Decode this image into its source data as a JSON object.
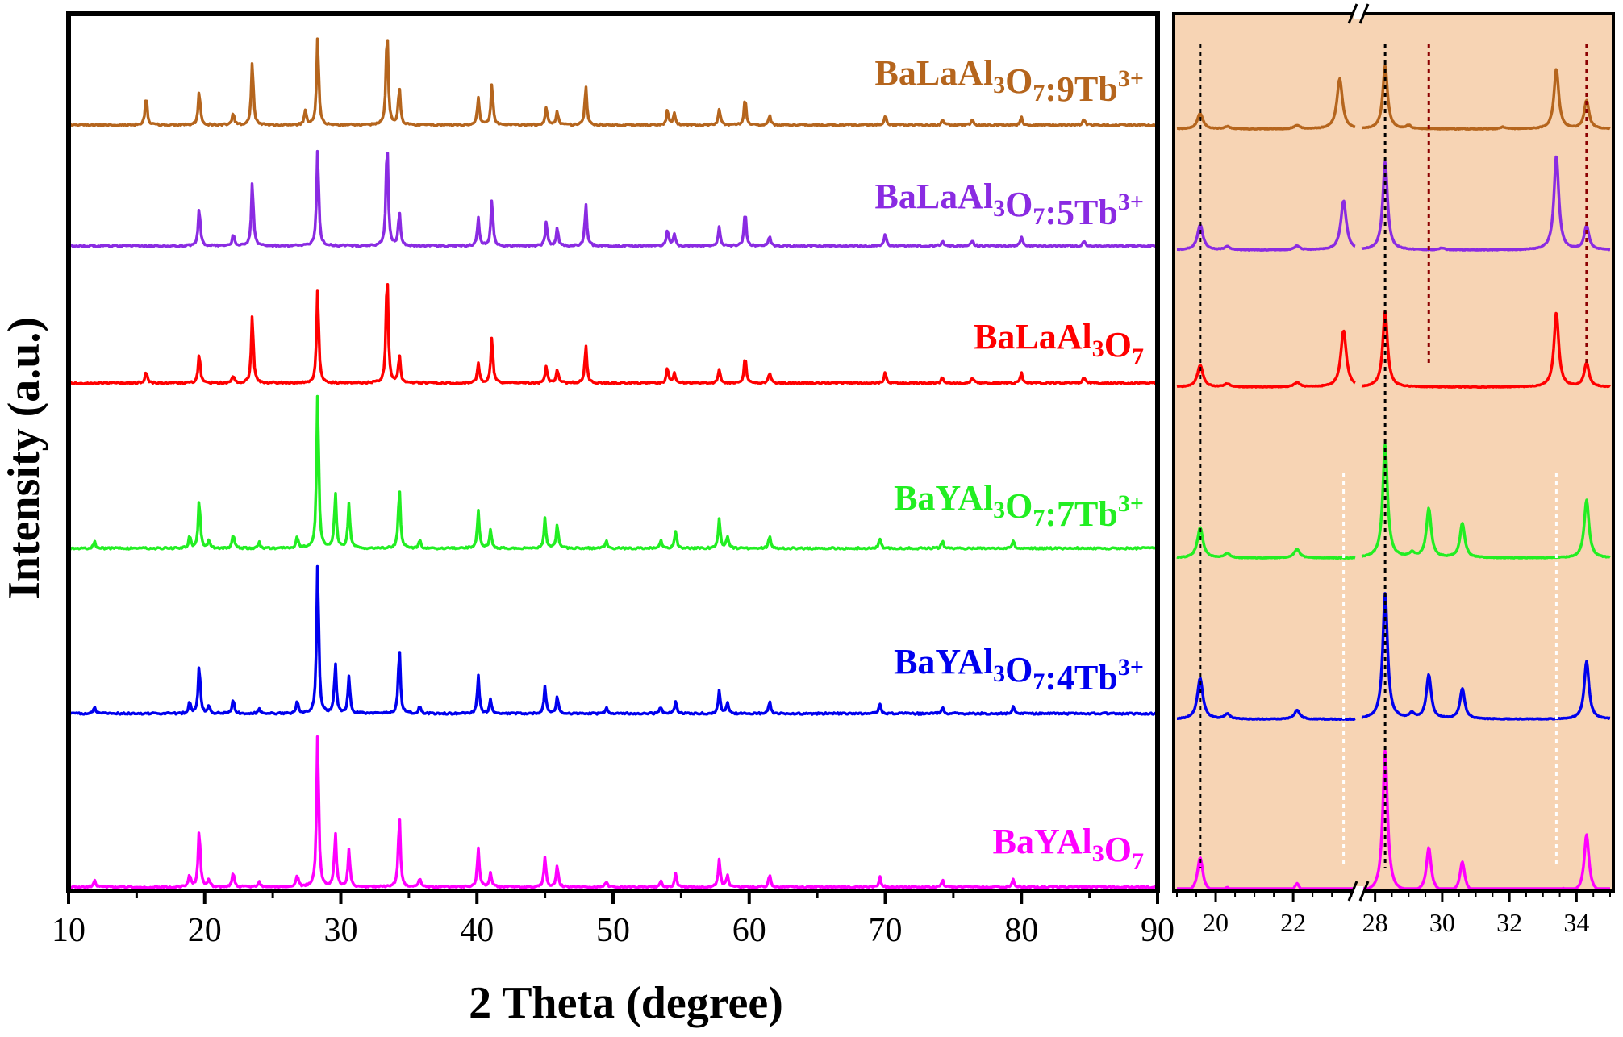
{
  "chart_data": [
    {
      "type": "line",
      "xlabel": "2 Theta (degree)",
      "ylabel": "Intensity (a.u.)",
      "xlim": [
        10,
        90
      ],
      "x_ticks": [
        "10",
        "20",
        "30",
        "40",
        "50",
        "60",
        "70",
        "80",
        "90"
      ],
      "y_ticks": [],
      "legend_placement": "inline labels above each curve, right side",
      "series": [
        {
          "label_main": "BaLaAl",
          "label_sub1": "3",
          "label_mid": "O",
          "label_sub2": "7",
          "label_tail": ":9Tb",
          "label_sup": "3+",
          "color": "#b5651d",
          "offset": 5,
          "peaks": [
            [
              15.7,
              0.3
            ],
            [
              19.6,
              0.35
            ],
            [
              22.1,
              0.12
            ],
            [
              23.5,
              0.65
            ],
            [
              27.4,
              0.15
            ],
            [
              28.3,
              0.9
            ],
            [
              33.4,
              1.0
            ],
            [
              34.3,
              0.38
            ],
            [
              40.1,
              0.28
            ],
            [
              41.1,
              0.42
            ],
            [
              45.1,
              0.18
            ],
            [
              45.9,
              0.14
            ],
            [
              48.0,
              0.4
            ],
            [
              54.0,
              0.15
            ],
            [
              54.5,
              0.12
            ],
            [
              57.8,
              0.16
            ],
            [
              59.7,
              0.27
            ],
            [
              61.5,
              0.1
            ],
            [
              70.0,
              0.1
            ],
            [
              74.2,
              0.06
            ],
            [
              76.4,
              0.06
            ],
            [
              80.0,
              0.08
            ],
            [
              84.6,
              0.06
            ]
          ]
        },
        {
          "label_main": "BaLaAl",
          "label_sub1": "3",
          "label_mid": "O",
          "label_sub2": "7",
          "label_tail": ":5Tb",
          "label_sup": "3+",
          "color": "#8a2be2",
          "offset": 4,
          "peaks": [
            [
              19.6,
              0.4
            ],
            [
              22.1,
              0.12
            ],
            [
              23.5,
              0.65
            ],
            [
              28.3,
              1.0
            ],
            [
              33.4,
              1.1
            ],
            [
              34.3,
              0.35
            ],
            [
              40.1,
              0.28
            ],
            [
              41.1,
              0.48
            ],
            [
              45.1,
              0.25
            ],
            [
              45.9,
              0.18
            ],
            [
              48.0,
              0.42
            ],
            [
              54.0,
              0.17
            ],
            [
              54.5,
              0.12
            ],
            [
              57.8,
              0.2
            ],
            [
              59.7,
              0.36
            ],
            [
              61.5,
              0.1
            ],
            [
              70.0,
              0.12
            ],
            [
              74.2,
              0.06
            ],
            [
              76.4,
              0.06
            ],
            [
              80.0,
              0.1
            ],
            [
              84.6,
              0.06
            ]
          ]
        },
        {
          "label_main": "BaLaAl",
          "label_sub1": "3",
          "label_mid": "O",
          "label_sub2": "7",
          "label_tail": "",
          "label_sup": "",
          "color": "#ff0000",
          "offset": 3,
          "peaks": [
            [
              15.7,
              0.12
            ],
            [
              19.6,
              0.3
            ],
            [
              22.1,
              0.08
            ],
            [
              23.5,
              0.7
            ],
            [
              28.3,
              0.97
            ],
            [
              33.4,
              1.15
            ],
            [
              34.3,
              0.28
            ],
            [
              40.1,
              0.2
            ],
            [
              41.1,
              0.47
            ],
            [
              45.1,
              0.17
            ],
            [
              45.9,
              0.14
            ],
            [
              48.0,
              0.38
            ],
            [
              54.0,
              0.16
            ],
            [
              54.5,
              0.1
            ],
            [
              57.8,
              0.14
            ],
            [
              59.7,
              0.28
            ],
            [
              61.5,
              0.1
            ],
            [
              70.0,
              0.11
            ],
            [
              74.2,
              0.06
            ],
            [
              76.4,
              0.06
            ],
            [
              80.0,
              0.1
            ],
            [
              84.6,
              0.06
            ]
          ]
        },
        {
          "label_main": "BaYAl",
          "label_sub1": "3",
          "label_mid": "O",
          "label_sub2": "7",
          "label_tail": ":7Tb",
          "label_sup": "3+",
          "color": "#22ee22",
          "offset": 2,
          "peaks": [
            [
              11.9,
              0.07
            ],
            [
              18.9,
              0.12
            ],
            [
              19.6,
              0.5
            ],
            [
              20.3,
              0.08
            ],
            [
              22.1,
              0.15
            ],
            [
              24.0,
              0.06
            ],
            [
              26.8,
              0.12
            ],
            [
              28.3,
              1.6
            ],
            [
              29.6,
              0.55
            ],
            [
              30.6,
              0.45
            ],
            [
              34.3,
              0.62
            ],
            [
              35.8,
              0.08
            ],
            [
              40.1,
              0.38
            ],
            [
              41.0,
              0.18
            ],
            [
              45.0,
              0.3
            ],
            [
              45.9,
              0.24
            ],
            [
              49.5,
              0.08
            ],
            [
              53.5,
              0.08
            ],
            [
              54.6,
              0.18
            ],
            [
              57.8,
              0.3
            ],
            [
              58.4,
              0.12
            ],
            [
              61.5,
              0.12
            ],
            [
              69.6,
              0.1
            ],
            [
              74.2,
              0.08
            ],
            [
              79.4,
              0.08
            ]
          ]
        },
        {
          "label_main": "BaYAl",
          "label_sub1": "3",
          "label_mid": "O",
          "label_sub2": "7",
          "label_tail": ":4Tb",
          "label_sup": "3+",
          "color": "#0000ee",
          "offset": 1,
          "peaks": [
            [
              11.9,
              0.07
            ],
            [
              18.9,
              0.12
            ],
            [
              19.6,
              0.5
            ],
            [
              20.3,
              0.08
            ],
            [
              22.1,
              0.15
            ],
            [
              24.0,
              0.06
            ],
            [
              26.8,
              0.12
            ],
            [
              28.3,
              1.55
            ],
            [
              29.6,
              0.5
            ],
            [
              30.6,
              0.38
            ],
            [
              34.3,
              0.67
            ],
            [
              35.8,
              0.08
            ],
            [
              40.1,
              0.38
            ],
            [
              41.0,
              0.15
            ],
            [
              45.0,
              0.27
            ],
            [
              45.9,
              0.18
            ],
            [
              49.5,
              0.06
            ],
            [
              53.5,
              0.07
            ],
            [
              54.6,
              0.13
            ],
            [
              57.8,
              0.23
            ],
            [
              58.4,
              0.12
            ],
            [
              61.5,
              0.12
            ],
            [
              69.6,
              0.1
            ],
            [
              74.2,
              0.07
            ],
            [
              79.4,
              0.08
            ]
          ]
        },
        {
          "label_main": "BaYAl",
          "label_sub1": "3",
          "label_mid": "O",
          "label_sub2": "7",
          "label_tail": "",
          "label_sup": "",
          "color": "#ff00ff",
          "offset": 0,
          "peaks": [
            [
              11.9,
              0.07
            ],
            [
              18.9,
              0.12
            ],
            [
              19.6,
              0.6
            ],
            [
              20.3,
              0.08
            ],
            [
              22.1,
              0.15
            ],
            [
              24.0,
              0.06
            ],
            [
              26.8,
              0.12
            ],
            [
              28.3,
              1.57
            ],
            [
              29.6,
              0.55
            ],
            [
              30.6,
              0.37
            ],
            [
              34.3,
              0.73
            ],
            [
              35.8,
              0.08
            ],
            [
              40.1,
              0.4
            ],
            [
              41.0,
              0.15
            ],
            [
              45.0,
              0.3
            ],
            [
              45.9,
              0.21
            ],
            [
              49.5,
              0.06
            ],
            [
              53.5,
              0.06
            ],
            [
              54.6,
              0.13
            ],
            [
              57.8,
              0.28
            ],
            [
              58.4,
              0.12
            ],
            [
              61.5,
              0.12
            ],
            [
              69.6,
              0.1
            ],
            [
              74.2,
              0.07
            ],
            [
              79.4,
              0.08
            ]
          ]
        }
      ]
    },
    {
      "type": "line",
      "xlabel": "",
      "ylabel": "",
      "broken_axis": true,
      "segments": [
        [
          19,
          23.6
        ],
        [
          27.6,
          35
        ]
      ],
      "x_ticks": [
        "20",
        "22",
        "28",
        "30",
        "32",
        "34"
      ],
      "background": "#f7d4b4",
      "series": [
        {
          "color": "#b5651d",
          "offset": 5,
          "peaks": [
            [
              19.6,
              0.25
            ],
            [
              20.3,
              0.04
            ],
            [
              22.1,
              0.06
            ],
            [
              23.2,
              0.8
            ],
            [
              28.3,
              1.0
            ],
            [
              29.0,
              0.05
            ],
            [
              31.8,
              0.03
            ],
            [
              33.4,
              0.95
            ],
            [
              34.3,
              0.45
            ]
          ]
        },
        {
          "color": "#8a2be2",
          "offset": 4,
          "peaks": [
            [
              19.6,
              0.4
            ],
            [
              20.3,
              0.05
            ],
            [
              22.1,
              0.06
            ],
            [
              23.3,
              0.78
            ],
            [
              28.3,
              1.4
            ],
            [
              30.0,
              0.03
            ],
            [
              33.4,
              1.5
            ],
            [
              34.3,
              0.38
            ]
          ]
        },
        {
          "color": "#ff0000",
          "offset": 3,
          "peaks": [
            [
              19.6,
              0.35
            ],
            [
              20.3,
              0.05
            ],
            [
              22.1,
              0.07
            ],
            [
              23.3,
              0.9
            ],
            [
              28.3,
              1.2
            ],
            [
              33.4,
              1.18
            ],
            [
              34.3,
              0.38
            ]
          ]
        },
        {
          "color": "#22ee22",
          "offset": 2,
          "peaks": [
            [
              19.6,
              0.48
            ],
            [
              20.3,
              0.07
            ],
            [
              22.1,
              0.14
            ],
            [
              28.3,
              1.8
            ],
            [
              29.1,
              0.07
            ],
            [
              29.6,
              0.78
            ],
            [
              30.6,
              0.55
            ],
            [
              34.3,
              0.92
            ]
          ]
        },
        {
          "color": "#0000ee",
          "offset": 1,
          "peaks": [
            [
              19.6,
              0.65
            ],
            [
              20.3,
              0.08
            ],
            [
              22.1,
              0.14
            ],
            [
              28.3,
              2.0
            ],
            [
              29.1,
              0.08
            ],
            [
              29.6,
              0.7
            ],
            [
              30.6,
              0.48
            ],
            [
              34.3,
              0.92
            ]
          ]
        },
        {
          "color": "#ff00ff",
          "offset": 0,
          "peaks": [
            [
              19.6,
              0.55
            ],
            [
              20.3,
              0.08
            ],
            [
              22.1,
              0.14
            ],
            [
              28.3,
              2.25
            ],
            [
              29.6,
              0.7
            ],
            [
              30.6,
              0.48
            ],
            [
              33.6,
              0.05
            ],
            [
              34.3,
              0.92
            ]
          ]
        }
      ],
      "reference_lines": [
        {
          "x": 19.6,
          "color": "#000000",
          "from_series": 0,
          "to_series": 5
        },
        {
          "x": 23.3,
          "color": "#ffffff",
          "from_series": 3,
          "to_series": 5
        },
        {
          "x": 28.3,
          "color": "#000000",
          "from_series": 0,
          "to_series": 5
        },
        {
          "x": 33.4,
          "color": "#ffffff",
          "from_series": 3,
          "to_series": 5
        },
        {
          "x": 29.6,
          "color": "#8b0000",
          "from_series": 0,
          "to_series": 2
        },
        {
          "x": 34.3,
          "color": "#8b0000",
          "from_series": 0,
          "to_series": 2
        }
      ]
    }
  ]
}
